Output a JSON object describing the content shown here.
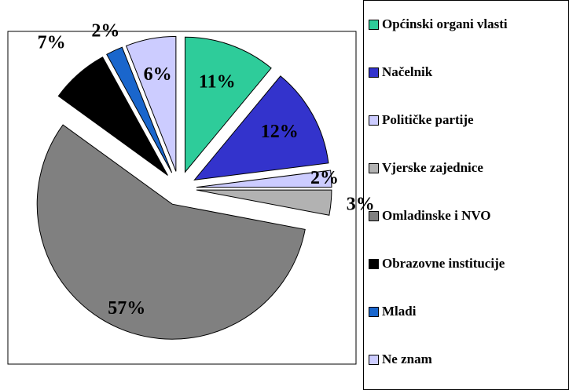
{
  "chart_data": {
    "type": "pie",
    "categories": [
      "Općinski organi vlasti",
      "Načelnik",
      "Političke partije",
      "Vjerske zajednice",
      "Omladinske i NVO",
      "Obrazovne institucije",
      "Mladi",
      "Ne znam"
    ],
    "values": [
      11,
      12,
      2,
      3,
      57,
      7,
      2,
      6
    ],
    "value_labels": [
      "11%",
      "12%",
      "2%",
      "3%",
      "57%",
      "7%",
      "2%",
      "6%"
    ],
    "colors": [
      "#2ecc9a",
      "#3333cc",
      "#ccccff",
      "#b2b2b2",
      "#808080",
      "#000000",
      "#1a66cc",
      "#ccccff"
    ]
  }
}
